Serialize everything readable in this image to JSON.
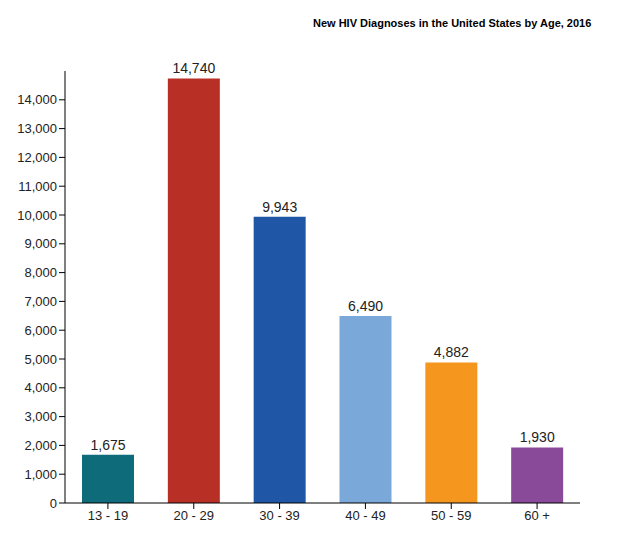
{
  "chart_data": {
    "type": "bar",
    "title": "New HIV Diagnoses in the United States by Age, 2016",
    "categories": [
      "13 - 19",
      "20 - 29",
      "30 - 39",
      "40 - 49",
      "50 - 59",
      "60 +"
    ],
    "values": [
      1675,
      14740,
      9943,
      6490,
      4882,
      1930
    ],
    "value_labels": [
      "1,675",
      "14,740",
      "9,943",
      "6,490",
      "4,882",
      "1,930"
    ],
    "colors": [
      "#0e6b7a",
      "#b83025",
      "#1f56a5",
      "#7aa8d8",
      "#f5961f",
      "#8a4a9a"
    ],
    "ylim": [
      0,
      15000
    ],
    "yticks": [
      0,
      {
        "value": 1000,
        "label": "1,000"
      },
      {
        "value": 2000,
        "label": "2,000"
      },
      {
        "value": 3000,
        "label": "3,000"
      },
      {
        "value": 4000,
        "label": "4,000"
      },
      {
        "value": 5000,
        "label": "5,000"
      },
      {
        "value": 6000,
        "label": "6,000"
      },
      {
        "value": 7000,
        "label": "7,000"
      },
      {
        "value": 8000,
        "label": "8,000"
      },
      {
        "value": 9000,
        "label": "9,000"
      },
      {
        "value": 10000,
        "label": "10,000"
      },
      {
        "value": 11000,
        "label": "11,000"
      },
      {
        "value": 12000,
        "label": "12,000"
      },
      {
        "value": 13000,
        "label": "13,000"
      },
      {
        "value": 14000,
        "label": "14,000"
      }
    ],
    "grid": false,
    "data_labels": true
  }
}
